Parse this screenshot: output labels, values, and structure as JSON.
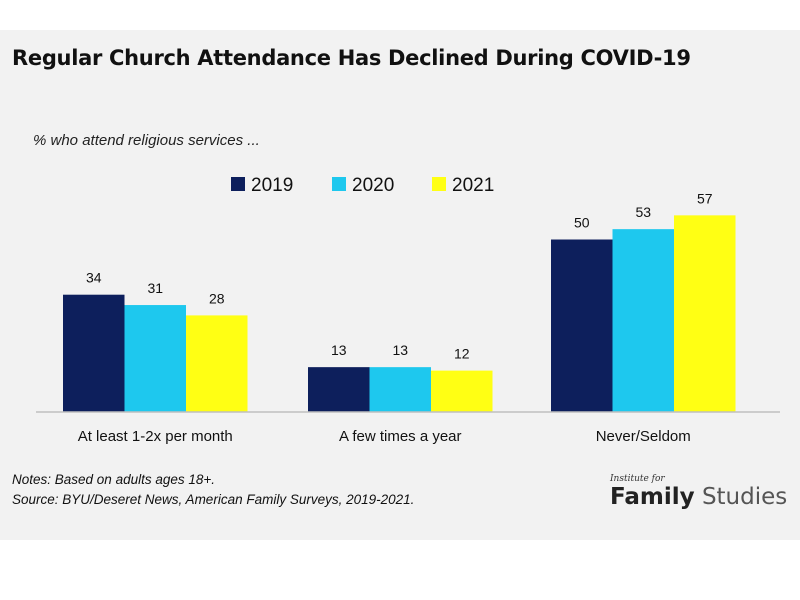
{
  "chart_data": {
    "type": "bar",
    "title": "Regular Church Attendance Has Declined During COVID-19",
    "subtitle": "% who attend religious services ...",
    "categories": [
      "At least 1-2x per month",
      "A few times a year",
      "Never/Seldom"
    ],
    "series": [
      {
        "name": "2019",
        "values": [
          34,
          13,
          50
        ],
        "color": "#0d1f5c"
      },
      {
        "name": "2020",
        "values": [
          31,
          13,
          53
        ],
        "color": "#1ec8ee"
      },
      {
        "name": "2021",
        "values": [
          28,
          12,
          57
        ],
        "color": "#ffff14"
      }
    ],
    "ylim": [
      0,
      60
    ],
    "grid": false,
    "legend_position": "top-center",
    "data_labels": true
  },
  "notes": {
    "line1": "Notes: Based on adults ages 18+.",
    "line2": "Source: BYU/Deseret News, American Family Surveys, 2019-2021."
  },
  "logo": {
    "small": "Institute for",
    "word1": "Family",
    "word2": "Studies"
  }
}
